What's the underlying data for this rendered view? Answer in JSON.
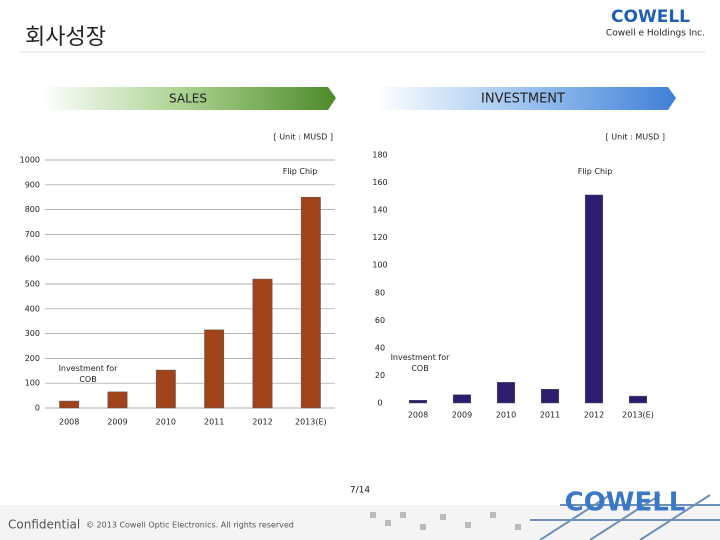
{
  "header": {
    "title": "회사성장",
    "company": "Cowell e Holdings Inc.",
    "logo": "COWELL"
  },
  "sections": [
    "SALES",
    "INVESTMENT"
  ],
  "chart_data": [
    {
      "type": "bar",
      "unit": "[ Unit : MUSD ]",
      "categories": [
        "2008",
        "2009",
        "2010",
        "2011",
        "2012",
        "2013(E)"
      ],
      "values": [
        28,
        65,
        153,
        315,
        520,
        850
      ],
      "color": "#a0421a",
      "ylim": [
        0,
        1000
      ],
      "yticks": [
        0,
        100,
        200,
        300,
        400,
        500,
        600,
        700,
        800,
        900,
        1000
      ],
      "grid": true,
      "annotations": [
        "Flip Chip",
        "Investment for COB"
      ]
    },
    {
      "type": "bar",
      "unit": "[ Unit : MUSD ]",
      "categories": [
        "2008",
        "2009",
        "2010",
        "2011",
        "2012",
        "2013(E)"
      ],
      "values": [
        2,
        6,
        15,
        10,
        151,
        5
      ],
      "color": "#2e1c6e",
      "ylim": [
        0,
        180
      ],
      "yticks": [
        0,
        20,
        40,
        60,
        80,
        100,
        120,
        140,
        160,
        180
      ],
      "grid": false,
      "annotations": [
        "Flip Chip",
        "Investment for COB"
      ]
    }
  ],
  "footer": {
    "page": "7/14",
    "confidential": "Confidential",
    "copyright": "© 2013 Cowell Optic Electronics. All rights reserved"
  }
}
